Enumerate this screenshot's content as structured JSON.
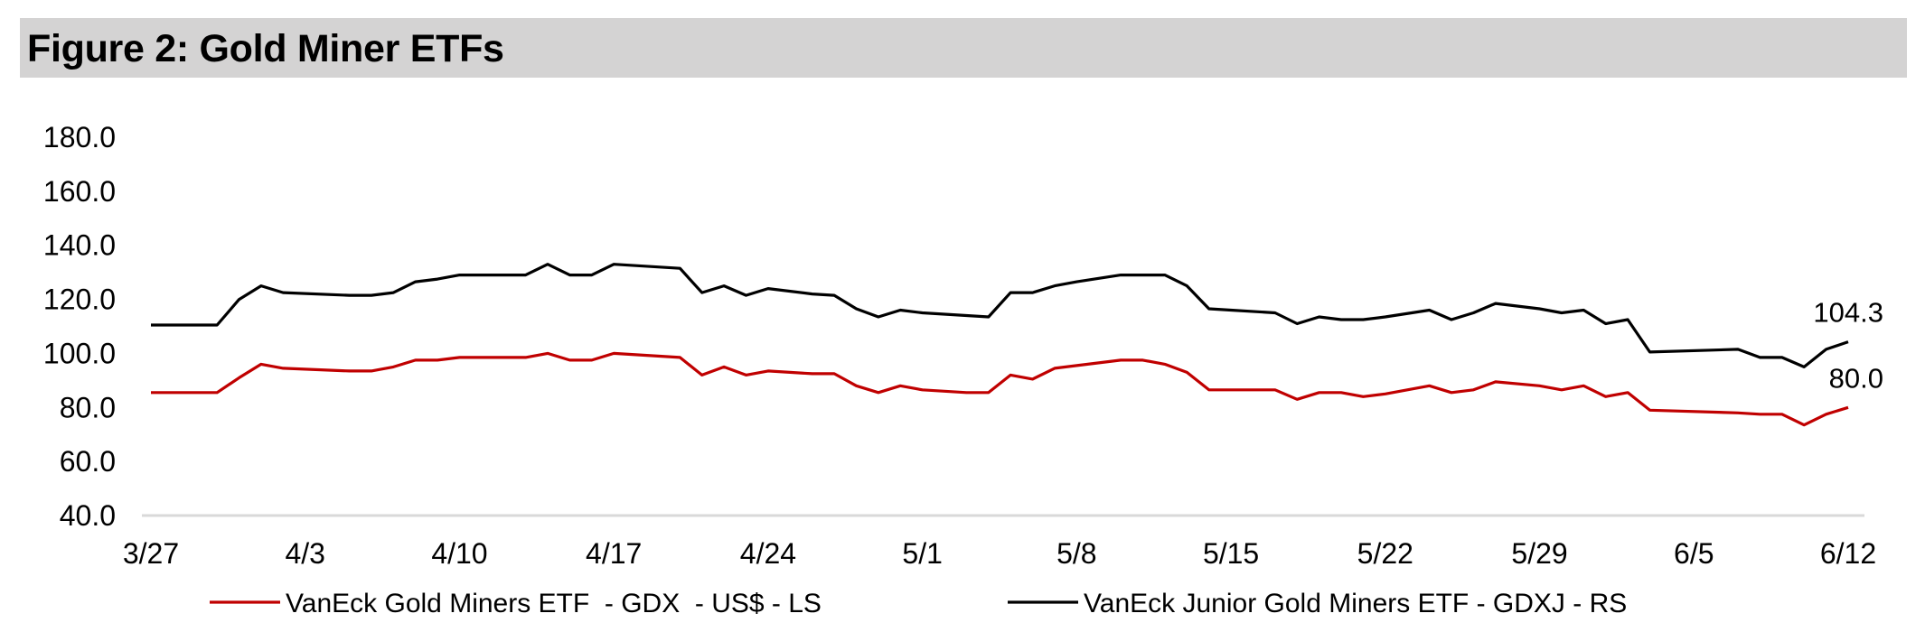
{
  "figure": {
    "title": "Figure 2: Gold Miner ETFs"
  },
  "chart_data": {
    "type": "line",
    "title": "Figure 2: Gold Miner ETFs",
    "ylim": [
      40,
      180
    ],
    "y_ticks": [
      "180.0",
      "160.0",
      "140.0",
      "120.0",
      "100.0",
      "80.0",
      "60.0",
      "40.0"
    ],
    "x_ticks": [
      "3/27",
      "4/3",
      "4/10",
      "4/17",
      "4/24",
      "5/1",
      "5/8",
      "5/15",
      "5/22",
      "5/29",
      "6/5",
      "6/12"
    ],
    "x_start": "3/27",
    "x_end": "6/12",
    "grid": false,
    "legend": "bottom",
    "series": [
      {
        "name": "VanEck Gold Miners ETF  - GDX  - US$ - LS",
        "color": "#c00000",
        "end_label": "80.0",
        "points": [
          [
            "3/27",
            85.5
          ],
          [
            "3/28",
            85.5
          ],
          [
            "3/29",
            85.5
          ],
          [
            "3/30",
            85.5
          ],
          [
            "3/31",
            91
          ],
          [
            "4/1",
            96
          ],
          [
            "4/2",
            94.5
          ],
          [
            "4/5",
            93.5
          ],
          [
            "4/6",
            93.5
          ],
          [
            "4/7",
            95
          ],
          [
            "4/8",
            97.5
          ],
          [
            "4/9",
            97.5
          ],
          [
            "4/10",
            98.5
          ],
          [
            "4/11",
            98.5
          ],
          [
            "4/12",
            98.5
          ],
          [
            "4/13",
            98.5
          ],
          [
            "4/14",
            100
          ],
          [
            "4/15",
            97.5
          ],
          [
            "4/16",
            97.5
          ],
          [
            "4/17",
            100
          ],
          [
            "4/18",
            99.5
          ],
          [
            "4/20",
            98.5
          ],
          [
            "4/21",
            92
          ],
          [
            "4/22",
            95
          ],
          [
            "4/23",
            92
          ],
          [
            "4/24",
            93.5
          ],
          [
            "4/26",
            92.5
          ],
          [
            "4/27",
            92.5
          ],
          [
            "4/28",
            88
          ],
          [
            "4/29",
            85.5
          ],
          [
            "4/30",
            88
          ],
          [
            "5/1",
            86.5
          ],
          [
            "5/3",
            85.5
          ],
          [
            "5/4",
            85.5
          ],
          [
            "5/5",
            92
          ],
          [
            "5/6",
            90.5
          ],
          [
            "5/7",
            94.5
          ],
          [
            "5/8",
            95.5
          ],
          [
            "5/10",
            97.5
          ],
          [
            "5/11",
            97.5
          ],
          [
            "5/12",
            96
          ],
          [
            "5/13",
            93
          ],
          [
            "5/14",
            86.5
          ],
          [
            "5/15",
            86.5
          ],
          [
            "5/17",
            86.5
          ],
          [
            "5/18",
            83
          ],
          [
            "5/19",
            85.5
          ],
          [
            "5/20",
            85.5
          ],
          [
            "5/21",
            84
          ],
          [
            "5/22",
            85
          ],
          [
            "5/24",
            88
          ],
          [
            "5/25",
            85.5
          ],
          [
            "5/26",
            86.5
          ],
          [
            "5/27",
            89.5
          ],
          [
            "5/29",
            88
          ],
          [
            "5/30",
            86.5
          ],
          [
            "5/31",
            88
          ],
          [
            "6/1",
            84
          ],
          [
            "6/2",
            85.5
          ],
          [
            "6/3",
            79
          ],
          [
            "6/7",
            78
          ],
          [
            "6/8",
            77.5
          ],
          [
            "6/9",
            77.5
          ],
          [
            "6/10",
            73.5
          ],
          [
            "6/11",
            77.5
          ],
          [
            "6/12",
            80
          ]
        ]
      },
      {
        "name": "VanEck Junior Gold Miners ETF - GDXJ - RS",
        "color": "#000000",
        "end_label": "104.3",
        "points": [
          [
            "3/27",
            110.5
          ],
          [
            "3/28",
            110.5
          ],
          [
            "3/29",
            110.5
          ],
          [
            "3/30",
            110.5
          ],
          [
            "3/31",
            120
          ],
          [
            "4/1",
            125
          ],
          [
            "4/2",
            122.5
          ],
          [
            "4/5",
            121.5
          ],
          [
            "4/6",
            121.5
          ],
          [
            "4/7",
            122.5
          ],
          [
            "4/8",
            126.5
          ],
          [
            "4/9",
            127.5
          ],
          [
            "4/10",
            129
          ],
          [
            "4/11",
            129
          ],
          [
            "4/12",
            129
          ],
          [
            "4/13",
            129
          ],
          [
            "4/14",
            133
          ],
          [
            "4/15",
            129
          ],
          [
            "4/16",
            129
          ],
          [
            "4/17",
            133
          ],
          [
            "4/18",
            132.5
          ],
          [
            "4/20",
            131.5
          ],
          [
            "4/21",
            122.5
          ],
          [
            "4/22",
            125
          ],
          [
            "4/23",
            121.5
          ],
          [
            "4/24",
            124
          ],
          [
            "4/26",
            122
          ],
          [
            "4/27",
            121.5
          ],
          [
            "4/28",
            116.5
          ],
          [
            "4/29",
            113.5
          ],
          [
            "4/30",
            116
          ],
          [
            "5/1",
            115
          ],
          [
            "5/3",
            114
          ],
          [
            "5/4",
            113.5
          ],
          [
            "5/5",
            122.5
          ],
          [
            "5/6",
            122.5
          ],
          [
            "5/7",
            125
          ],
          [
            "5/8",
            126.5
          ],
          [
            "5/10",
            129
          ],
          [
            "5/11",
            129
          ],
          [
            "5/12",
            129
          ],
          [
            "5/13",
            125
          ],
          [
            "5/14",
            116.5
          ],
          [
            "5/15",
            116
          ],
          [
            "5/17",
            115
          ],
          [
            "5/18",
            111
          ],
          [
            "5/19",
            113.5
          ],
          [
            "5/20",
            112.5
          ],
          [
            "5/21",
            112.5
          ],
          [
            "5/22",
            113.5
          ],
          [
            "5/24",
            116
          ],
          [
            "5/25",
            112.5
          ],
          [
            "5/26",
            115
          ],
          [
            "5/27",
            118.5
          ],
          [
            "5/29",
            116.5
          ],
          [
            "5/30",
            115
          ],
          [
            "5/31",
            116
          ],
          [
            "6/1",
            111
          ],
          [
            "6/2",
            112.5
          ],
          [
            "6/3",
            100.5
          ],
          [
            "6/7",
            101.5
          ],
          [
            "6/8",
            98.5
          ],
          [
            "6/9",
            98.5
          ],
          [
            "6/10",
            95
          ],
          [
            "6/11",
            101.5
          ],
          [
            "6/12",
            104.3
          ]
        ]
      }
    ]
  }
}
